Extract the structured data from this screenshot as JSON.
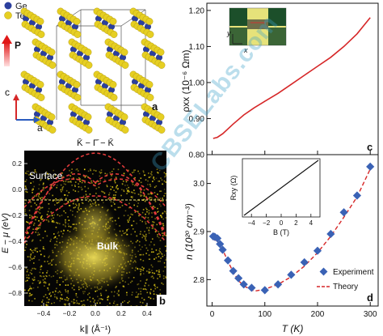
{
  "panel_a": {
    "legend": [
      {
        "label": "Ge",
        "color": "#2b3f9e"
      },
      {
        "label": "Te",
        "color": "#e6cf22"
      }
    ],
    "polarization_label": "P",
    "axis_c": "c",
    "axis_a": "a",
    "panel_label": "a"
  },
  "panel_b": {
    "k_path": "K̄ − Γ̄ − K̄",
    "surface_label": "Surface",
    "bulk_label": "Bulk",
    "ylabel": "E − μ (eV)",
    "xlabel": "k∥ (Å⁻¹)",
    "y_ticks": [
      "0.2",
      "0.0",
      "−0.2",
      "−0.4",
      "−0.6",
      "−0.8"
    ],
    "x_ticks": [
      "−0.4",
      "−0.2",
      "0.0",
      "0.2",
      "0.4"
    ],
    "panel_label": "b"
  },
  "panel_c": {
    "ylabel": "ρxx (10⁻⁶ Ωm)",
    "y_ticks": [
      "0.80",
      "0.90",
      "1.00",
      "1.10",
      "1.20"
    ],
    "inset_axes": {
      "x": "x",
      "y": "y"
    },
    "panel_label": "c",
    "colors": {
      "curve": "#d62728"
    }
  },
  "panel_d": {
    "ylabel": "n (10²⁰ cm⁻³)",
    "xlabel": "T (K)",
    "y_ticks": [
      "2.8",
      "2.9",
      "3.0"
    ],
    "x_ticks": [
      "0",
      "100",
      "200",
      "300"
    ],
    "legend_experiment": "Experiment",
    "legend_theory": "Theory",
    "inset": {
      "ylabel": "Rxy (Ω)",
      "xlabel": "B (T)",
      "x_ticks": [
        "−4",
        "−2",
        "0",
        "2",
        "4"
      ]
    },
    "panel_label": "d",
    "colors": {
      "experiment": "#3a62b5",
      "theory": "#d62728"
    }
  },
  "watermark": "CBSELabs.com",
  "chart_data": [
    {
      "type": "line",
      "panel": "c",
      "xlabel": "T (K)",
      "ylabel": "ρxx (10⁻⁶ Ωm)",
      "xlim": [
        -10,
        315
      ],
      "ylim": [
        0.8,
        1.22
      ],
      "x": [
        2,
        10,
        20,
        40,
        60,
        80,
        100,
        125,
        150,
        175,
        200,
        225,
        250,
        275,
        300
      ],
      "y": [
        0.845,
        0.848,
        0.858,
        0.885,
        0.91,
        0.93,
        0.948,
        0.97,
        0.995,
        1.02,
        1.045,
        1.07,
        1.1,
        1.135,
        1.18
      ]
    },
    {
      "type": "scatter",
      "panel": "d",
      "xlabel": "T (K)",
      "ylabel": "n (10²⁰ cm⁻³)",
      "xlim": [
        -10,
        315
      ],
      "ylim": [
        2.745,
        3.06
      ],
      "series": [
        {
          "name": "Experiment",
          "x": [
            2,
            5,
            10,
            15,
            20,
            30,
            40,
            50,
            60,
            75,
            100,
            125,
            150,
            175,
            200,
            225,
            250,
            275,
            300
          ],
          "y": [
            2.89,
            2.889,
            2.886,
            2.874,
            2.862,
            2.84,
            2.818,
            2.803,
            2.79,
            2.783,
            2.778,
            2.79,
            2.81,
            2.836,
            2.86,
            2.895,
            2.94,
            2.975,
            3.035
          ]
        },
        {
          "name": "Theory",
          "x": [
            0,
            10,
            20,
            30,
            40,
            50,
            60,
            80,
            100,
            125,
            150,
            175,
            200,
            225,
            250,
            275,
            300
          ],
          "y": [
            2.885,
            2.88,
            2.862,
            2.838,
            2.816,
            2.798,
            2.787,
            2.776,
            2.78,
            2.79,
            2.806,
            2.828,
            2.856,
            2.89,
            2.93,
            2.972,
            3.03
          ]
        }
      ]
    },
    {
      "type": "line",
      "panel": "d-inset",
      "xlabel": "B (T)",
      "ylabel": "Rxy (Ω)",
      "xlim": [
        -5,
        5
      ],
      "x": [
        -5,
        5
      ],
      "y": [
        -1,
        1
      ]
    }
  ]
}
